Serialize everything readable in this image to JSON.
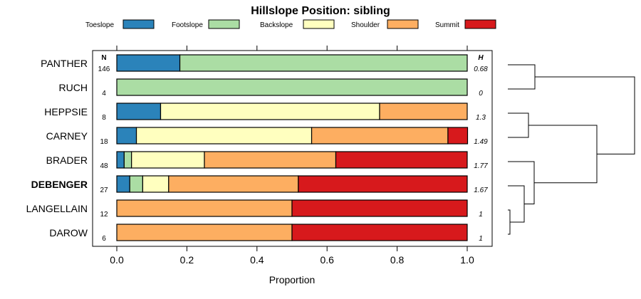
{
  "chart_data": {
    "type": "bar",
    "orientation": "horizontal",
    "stacked": true,
    "title": "Hillslope Position: sibling",
    "xlabel": "Proportion",
    "xlim": [
      0,
      1
    ],
    "xticks": [
      "0.0",
      "0.2",
      "0.4",
      "0.6",
      "0.8",
      "1.0"
    ],
    "legend_position": "top",
    "grid": false,
    "n_header": "N",
    "h_header": "H",
    "categories": [
      "PANTHER",
      "RUCH",
      "HEPPSIE",
      "CARNEY",
      "BRADER",
      "DEBENGER",
      "LANGELLAIN",
      "DAROW"
    ],
    "bold_category": "DEBENGER",
    "n": [
      "146",
      "4",
      "8",
      "18",
      "48",
      "27",
      "12",
      "6"
    ],
    "h": [
      "0.68",
      "0",
      "1.3",
      "1.49",
      "1.77",
      "1.67",
      "1",
      "1"
    ],
    "series": [
      {
        "name": "Toeslope",
        "color": "#2b83ba",
        "values": [
          0.18,
          0.0,
          0.125,
          0.056,
          0.021,
          0.037,
          0.0,
          0.0
        ]
      },
      {
        "name": "Footslope",
        "color": "#abdda4",
        "values": [
          0.82,
          1.0,
          0.0,
          0.0,
          0.021,
          0.037,
          0.0,
          0.0
        ]
      },
      {
        "name": "Backslope",
        "color": "#ffffbf",
        "values": [
          0.0,
          0.0,
          0.625,
          0.5,
          0.208,
          0.074,
          0.0,
          0.0
        ]
      },
      {
        "name": "Shoulder",
        "color": "#fdae61",
        "values": [
          0.0,
          0.0,
          0.25,
          0.389,
          0.375,
          0.37,
          0.5,
          0.5
        ]
      },
      {
        "name": "Summit",
        "color": "#d7191c",
        "values": [
          0.0,
          0.0,
          0.0,
          0.056,
          0.375,
          0.482,
          0.5,
          0.5
        ]
      }
    ],
    "dendrogram": {
      "merges": [
        [
          "LANGELLAIN",
          "DAROW"
        ],
        [
          "DEBENGER",
          "LANGELLAIN+DAROW"
        ],
        [
          "HEPPSIE",
          "CARNEY"
        ],
        [
          "BRADER",
          "DEBENGER+LANGELLAIN+DAROW"
        ],
        [
          "PANTHER",
          "RUCH"
        ],
        [
          "HEPPSIE+CARNEY",
          "BRADER+DEBENGER+LANGELLAIN+DAROW"
        ],
        [
          "PANTHER+RUCH",
          "HEPPSIE+CARNEY+BRADER+DEBENGER+LANGELLAIN+DAROW"
        ]
      ]
    }
  }
}
